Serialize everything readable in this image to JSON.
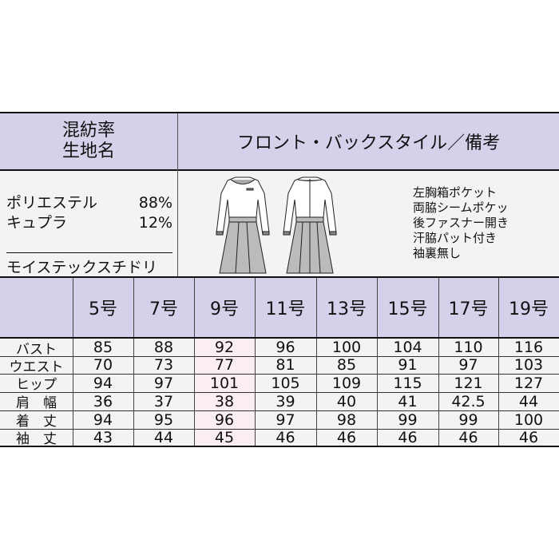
{
  "header": {
    "fabric_label_line1": "混紡率",
    "fabric_label_line2": "生地名",
    "style_label": "フロント・バックスタイル／備考"
  },
  "fabric": {
    "composition": [
      {
        "name": "ポリエステル",
        "percent": "88%"
      },
      {
        "name": "キュプラ",
        "percent": "12%"
      }
    ],
    "fabric_name": "モイステックスチドリ"
  },
  "notes": [
    "左胸箱ポケット",
    "両脇シームポケッ",
    "後ファスナー開き",
    "汗脇パット付き",
    "袖裏無し"
  ],
  "colors": {
    "header_bg": "#d6d1ea",
    "highlight_col": "#fbeef0",
    "body_bg": "#f3f3f3"
  },
  "sizes": [
    "5号",
    "7号",
    "9号",
    "11号",
    "13号",
    "15号",
    "17号",
    "19号"
  ],
  "rows": [
    {
      "label": "バスト",
      "values": [
        "85",
        "88",
        "92",
        "96",
        "100",
        "104",
        "110",
        "116"
      ]
    },
    {
      "label": "ウエスト",
      "values": [
        "70",
        "73",
        "77",
        "81",
        "85",
        "91",
        "97",
        "103"
      ]
    },
    {
      "label": "ヒップ",
      "values": [
        "94",
        "97",
        "101",
        "105",
        "109",
        "115",
        "121",
        "127"
      ]
    },
    {
      "label": "肩　幅",
      "values": [
        "36",
        "37",
        "38",
        "39",
        "40",
        "41",
        "42.5",
        "44"
      ]
    },
    {
      "label": "着　丈",
      "values": [
        "94",
        "95",
        "96",
        "97",
        "98",
        "99",
        "99",
        "100"
      ]
    },
    {
      "label": "袖　丈",
      "values": [
        "43",
        "44",
        "45",
        "46",
        "46",
        "46",
        "46",
        "46"
      ]
    }
  ]
}
